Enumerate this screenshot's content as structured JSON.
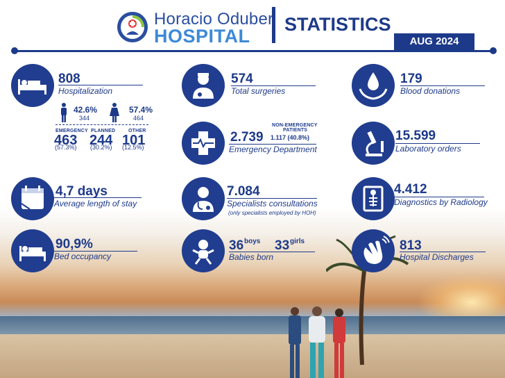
{
  "header": {
    "hospital_name_line1": "Horacio Oduber",
    "hospital_name_line2": "HOSPITAL",
    "title": "STATISTICS",
    "period": "AUG 2024"
  },
  "colors": {
    "primary": "#1d3a8a",
    "accent": "#3d8ad6",
    "logo_red": "#e23a3a",
    "logo_green": "#8cc63f"
  },
  "stats": {
    "hospitalization": {
      "value": "808",
      "label": "Hospitalization",
      "icon": "hospital-bed-icon",
      "male_pct": "42.6%",
      "male_count": "344",
      "female_pct": "57.4%",
      "female_count": "464",
      "breakdown": [
        {
          "label": "EMERGENCY",
          "value": "463",
          "pct": "(57.3%)"
        },
        {
          "label": "PLANNED",
          "value": "244",
          "pct": "(30.2%)"
        },
        {
          "label": "OTHER",
          "value": "101",
          "pct": "(12.5%)"
        }
      ]
    },
    "surgeries": {
      "value": "574",
      "label": "Total surgeries",
      "icon": "surgeon-icon"
    },
    "blood": {
      "value": "179",
      "label": "Blood donations",
      "icon": "blood-drop-hands-icon"
    },
    "emergency": {
      "value": "2.739",
      "label": "Emergency Department",
      "icon": "medical-cross-icon",
      "sub_title_1": "NON-EMERGENCY",
      "sub_title_2": "PATIENTS",
      "sub_value": "1.117 (40.8%)"
    },
    "laboratory": {
      "value": "15.599",
      "label": "Laboratory orders",
      "icon": "microscope-icon"
    },
    "stay": {
      "value": "4,7 days",
      "label": "Average length of stay",
      "icon": "calendar-icon"
    },
    "specialists": {
      "value": "7.084",
      "label": "Specialists consultations",
      "note": "(only specialists employed by HOH)",
      "icon": "doctor-icon"
    },
    "radiology": {
      "value": "4.412",
      "label": "Diagnostics by Radiology",
      "icon": "xray-icon"
    },
    "occupancy": {
      "value": "90,9%",
      "label": "Bed occupancy",
      "icon": "bed-icon"
    },
    "babies": {
      "boys": "36",
      "boys_label": "boys",
      "girls": "33",
      "girls_label": "girls",
      "label": "Babies born",
      "icon": "baby-icon"
    },
    "discharges": {
      "value": "813",
      "label": "Hospital Discharges",
      "icon": "waving-hand-icon"
    }
  }
}
